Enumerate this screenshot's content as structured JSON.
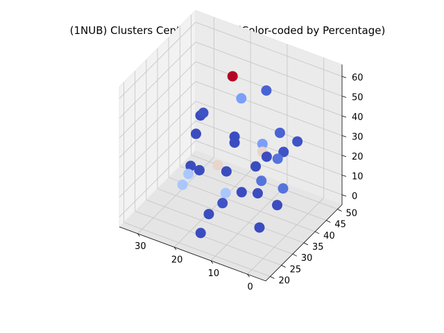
{
  "chart_data": {
    "type": "scatter",
    "title": "(1NUB) Clusters Center of Mass (Color-coded by Percentage)",
    "xlabel": "",
    "ylabel": "",
    "zlabel": "",
    "x_ticks": [
      "0",
      "10",
      "20",
      "30"
    ],
    "y_ticks": [
      "20",
      "25",
      "30",
      "35",
      "40",
      "45",
      "50"
    ],
    "z_ticks": [
      "0",
      "10",
      "20",
      "30",
      "40",
      "50",
      "60"
    ],
    "xlim": [
      -5,
      35
    ],
    "ylim": [
      18,
      52
    ],
    "zlim": [
      -5,
      66
    ],
    "colormap": "coolwarm",
    "color_dark_blue": "#3b4cc0",
    "color_light_blue": "#aac7fd",
    "color_beige": "#e8d6cc",
    "color_red": "#b40426",
    "points": [
      {
        "x": 12,
        "y": 46,
        "z": 48,
        "color": "#4a63d3"
      },
      {
        "x": 20,
        "y": 44,
        "z": 52,
        "color": "#b40426"
      },
      {
        "x": 17,
        "y": 43,
        "z": 44,
        "color": "#7b9ff9"
      },
      {
        "x": 4,
        "y": 39,
        "z": 40,
        "color": "#4a63d3"
      },
      {
        "x": -2,
        "y": 37,
        "z": 42,
        "color": "#3f53c6"
      },
      {
        "x": 10,
        "y": 41,
        "z": 28,
        "color": "#7b9ff9"
      },
      {
        "x": 10,
        "y": 41,
        "z": 24,
        "color": "#e8d6cc"
      },
      {
        "x": 3,
        "y": 39,
        "z": 31,
        "color": "#3f53c6"
      },
      {
        "x": 4,
        "y": 38,
        "z": 28,
        "color": "#5573dc"
      },
      {
        "x": 7,
        "y": 38,
        "z": 27,
        "color": "#3b4cc0"
      },
      {
        "x": 17,
        "y": 40,
        "z": 28,
        "color": "#3b4cc0"
      },
      {
        "x": 17,
        "y": 40,
        "z": 25,
        "color": "#3b4cc0"
      },
      {
        "x": 10,
        "y": 38,
        "z": 20,
        "color": "#3b4cc0"
      },
      {
        "x": 21,
        "y": 39,
        "z": 12,
        "color": "#e8d6cc"
      },
      {
        "x": 30,
        "y": 44,
        "z": 16,
        "color": "#3b4cc0"
      },
      {
        "x": 30,
        "y": 46,
        "z": 23,
        "color": "#3b4cc0"
      },
      {
        "x": 28,
        "y": 44,
        "z": 28,
        "color": "#3f53c6"
      },
      {
        "x": 18,
        "y": 38,
        "z": 12,
        "color": "#3b4cc0"
      },
      {
        "x": 6,
        "y": 34,
        "z": 20,
        "color": "#5573dc"
      },
      {
        "x": 7,
        "y": 34,
        "z": 13,
        "color": "#3b4cc0"
      },
      {
        "x": 12,
        "y": 35,
        "z": 9,
        "color": "#3b4cc0"
      },
      {
        "x": 17,
        "y": 36,
        "z": 4,
        "color": "#aac7fd"
      },
      {
        "x": 16,
        "y": 33,
        "z": 3,
        "color": "#3f53c6"
      },
      {
        "x": 26,
        "y": 39,
        "z": 6,
        "color": "#3b4cc0"
      },
      {
        "x": 29,
        "y": 40,
        "z": 5,
        "color": "#3b4cc0"
      },
      {
        "x": 29,
        "y": 39,
        "z": 2,
        "color": "#aac7fd"
      },
      {
        "x": 30,
        "y": 38,
        "z": -3,
        "color": "#aac7fd"
      },
      {
        "x": -3,
        "y": 29,
        "z": 28,
        "color": "#5573dc"
      },
      {
        "x": -2,
        "y": 28,
        "z": 20,
        "color": "#3b4cc0"
      },
      {
        "x": 1,
        "y": 25,
        "z": 10,
        "color": "#3b4cc0"
      },
      {
        "x": 13,
        "y": 22,
        "z": 12,
        "color": "#3b4cc0"
      },
      {
        "x": 14,
        "y": 20,
        "z": 4,
        "color": "#3b4cc0"
      }
    ]
  }
}
